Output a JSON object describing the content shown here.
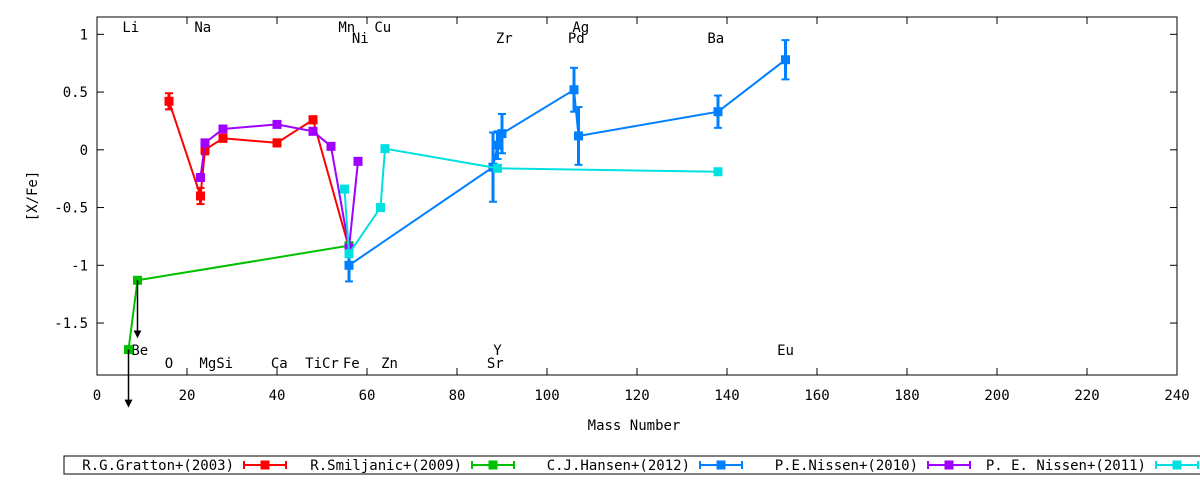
{
  "chart_data": {
    "type": "line",
    "title": "",
    "xlabel": "Mass Number",
    "ylabel": "[X/Fe]",
    "xlim": [
      0,
      240
    ],
    "ylim": [
      -1.95,
      1.15
    ],
    "xticks": [
      0,
      20,
      40,
      60,
      80,
      100,
      120,
      140,
      160,
      180,
      200,
      220,
      240
    ],
    "yticks": [
      -1.5,
      -1,
      -0.5,
      0,
      0.5,
      1
    ],
    "ytick_labels": [
      "-1.5",
      "-1",
      "-0.5",
      "0",
      "0.5",
      "1"
    ],
    "grid": false,
    "legend_position": "bottom",
    "element_labels": [
      {
        "text": "Li",
        "x": 7.5,
        "row": "top1"
      },
      {
        "text": "Na",
        "x": 23.5,
        "row": "top1"
      },
      {
        "text": "Mn",
        "x": 55.5,
        "row": "top1"
      },
      {
        "text": "Cu",
        "x": 63.5,
        "row": "top1"
      },
      {
        "text": "Ag",
        "x": 107.5,
        "row": "top1"
      },
      {
        "text": "Ni",
        "x": 58.5,
        "row": "top2"
      },
      {
        "text": "Zr",
        "x": 90.5,
        "row": "top2"
      },
      {
        "text": "Pd",
        "x": 106.5,
        "row": "top2"
      },
      {
        "text": "Ba",
        "x": 137.5,
        "row": "top2"
      },
      {
        "text": "Be",
        "x": 9.5,
        "row": "bot1"
      },
      {
        "text": "Y",
        "x": 89,
        "row": "bot1"
      },
      {
        "text": "Eu",
        "x": 153,
        "row": "bot1"
      },
      {
        "text": "O",
        "x": 16,
        "row": "bot2"
      },
      {
        "text": "MgSi",
        "x": 26.5,
        "row": "bot2"
      },
      {
        "text": "Ca",
        "x": 40.5,
        "row": "bot2"
      },
      {
        "text": "TiCr",
        "x": 50,
        "row": "bot2"
      },
      {
        "text": "Fe",
        "x": 56.5,
        "row": "bot2"
      },
      {
        "text": "Zn",
        "x": 65,
        "row": "bot2"
      },
      {
        "text": "Sr",
        "x": 88.5,
        "row": "bot2"
      }
    ],
    "series": [
      {
        "name": "R.G.Gratton+(2003)",
        "color": "#ff0000",
        "points": [
          {
            "x": 16,
            "y": 0.42,
            "err": 0.07
          },
          {
            "x": 23,
            "y": -0.4,
            "err": 0.07
          },
          {
            "x": 24,
            "y": 0.0,
            "err": 0.04
          },
          {
            "x": 28,
            "y": 0.1,
            "err": 0.03
          },
          {
            "x": 40,
            "y": 0.06,
            "err": 0.03
          },
          {
            "x": 48,
            "y": 0.26,
            "err": 0.03
          },
          {
            "x": 56,
            "y": -0.85,
            "err": 0.0
          }
        ]
      },
      {
        "name": "R.Smiljanic+(2009)",
        "color": "#00c000",
        "points": [
          {
            "x": 7,
            "y": -1.73,
            "err": 0.0
          },
          {
            "x": 9,
            "y": -1.13,
            "err": 0.0
          },
          {
            "x": 56,
            "y": -0.83,
            "err": 0.0
          }
        ]
      },
      {
        "name": "C.J.Hansen+(2012)",
        "color": "#0080ff",
        "points": [
          {
            "x": 56,
            "y": -1.0,
            "err": 0.14
          },
          {
            "x": 88,
            "y": -0.15,
            "err": 0.3
          },
          {
            "x": 89,
            "y": 0.04,
            "err": 0.12
          },
          {
            "x": 90,
            "y": 0.14,
            "err": 0.17
          },
          {
            "x": 106,
            "y": 0.52,
            "err": 0.19
          },
          {
            "x": 107,
            "y": 0.12,
            "err": 0.25
          },
          {
            "x": 138,
            "y": 0.33,
            "err": 0.14
          },
          {
            "x": 153,
            "y": 0.78,
            "err": 0.17
          }
        ]
      },
      {
        "name": "P.E.Nissen+(2010)",
        "color": "#a000ff",
        "points": [
          {
            "x": 23,
            "y": -0.24,
            "err": 0.0
          },
          {
            "x": 24,
            "y": 0.06,
            "err": 0.0
          },
          {
            "x": 28,
            "y": 0.18,
            "err": 0.0
          },
          {
            "x": 40,
            "y": 0.22,
            "err": 0.0
          },
          {
            "x": 48,
            "y": 0.16,
            "err": 0.0
          },
          {
            "x": 52,
            "y": 0.03,
            "err": 0.0
          },
          {
            "x": 56,
            "y": -0.85,
            "err": 0.0
          },
          {
            "x": 58,
            "y": -0.1,
            "err": 0.0
          }
        ]
      },
      {
        "name": "P. E. Nissen+(2011)",
        "color": "#00e0e0",
        "points": [
          {
            "x": 55,
            "y": -0.34,
            "err": 0.0
          },
          {
            "x": 56,
            "y": -0.9,
            "err": 0.0
          },
          {
            "x": 63,
            "y": -0.5,
            "err": 0.0
          },
          {
            "x": 64,
            "y": 0.01,
            "err": 0.0
          },
          {
            "x": 89,
            "y": -0.16,
            "err": 0.0
          },
          {
            "x": 138,
            "y": -0.19,
            "err": 0.0
          }
        ]
      }
    ],
    "arrows": [
      {
        "x": 9,
        "y": -1.13,
        "color": "#000000"
      },
      {
        "x": 7,
        "y": -1.73,
        "color": "#000000"
      }
    ]
  }
}
